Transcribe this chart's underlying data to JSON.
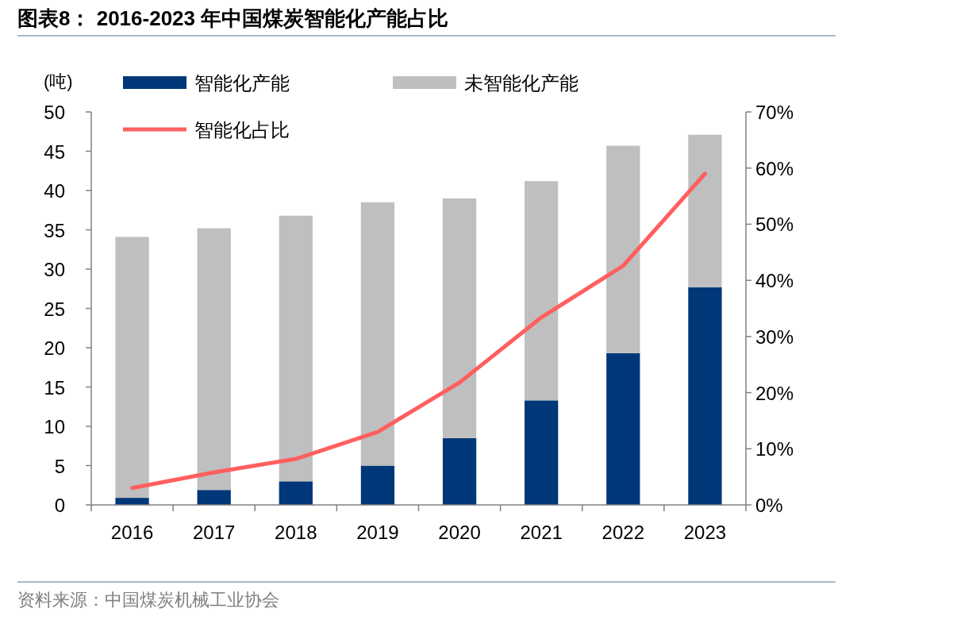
{
  "chart_data": {
    "type": "bar",
    "title": "图表8： 2016-2023 年中国煤炭智能化产能占比",
    "ylabel": "(吨)",
    "annotations": [
      "资料来源：中国煤炭机械工业协会"
    ],
    "categories": [
      "2016",
      "2017",
      "2018",
      "2019",
      "2020",
      "2021",
      "2022",
      "2023"
    ],
    "stacked": true,
    "legend": "top",
    "grid": false,
    "series": [
      {
        "name": "智能化产能",
        "color": "#003778",
        "values": [
          0.9,
          1.9,
          3.0,
          5.0,
          8.5,
          13.3,
          19.3,
          27.7
        ]
      },
      {
        "name": "未智能化产能",
        "color": "#bfbfbf",
        "values": [
          33.2,
          33.3,
          33.8,
          33.5,
          30.5,
          27.9,
          26.4,
          19.4
        ]
      },
      {
        "name": "智能化占比",
        "type": "line",
        "axis": "y2",
        "color": "#ff5f5f",
        "values": [
          3.0,
          5.8,
          8.2,
          13.0,
          21.8,
          33.4,
          42.6,
          59.0
        ]
      }
    ],
    "ylim": [
      0,
      50
    ],
    "yticks": [
      0,
      5,
      10,
      15,
      20,
      25,
      30,
      35,
      40,
      45,
      50
    ],
    "y2lim": [
      0,
      70
    ],
    "y2ticks": [
      {
        "value": 0,
        "label": "0%"
      },
      {
        "value": 10,
        "label": "10%"
      },
      {
        "value": 20,
        "label": "20%"
      },
      {
        "value": 30,
        "label": "30%"
      },
      {
        "value": 40,
        "label": "40%"
      },
      {
        "value": 50,
        "label": "50%"
      },
      {
        "value": 60,
        "label": "60%"
      },
      {
        "value": 70,
        "label": "70%"
      }
    ]
  }
}
